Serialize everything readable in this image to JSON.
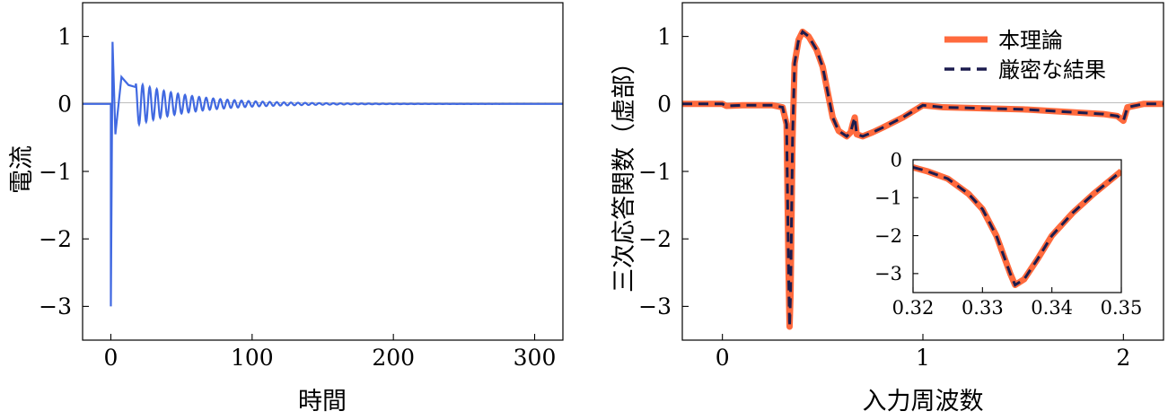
{
  "chart_data": [
    {
      "type": "line",
      "xlabel": "時間",
      "ylabel": "電流",
      "xlim": [
        -20,
        320
      ],
      "ylim": [
        -3.5,
        1.5
      ],
      "xticks": [
        0,
        100,
        200,
        300
      ],
      "yticks": [
        1,
        0,
        -1,
        -2,
        -3
      ],
      "xtick_labels": [
        "0",
        "100",
        "200",
        "300"
      ],
      "ytick_labels": [
        "1",
        "0",
        "−1",
        "−2",
        "−3"
      ],
      "series": [
        {
          "color": "#4169e1",
          "model": "damped oscillation",
          "x_start": 0,
          "x_end": 320,
          "peaks": [
            [
              0.0,
              -3.0
            ],
            [
              1.2,
              0.92
            ],
            [
              3.2,
              -0.45
            ],
            [
              7.5,
              0.4
            ],
            [
              12.5,
              0.28
            ],
            [
              17.5,
              0.25
            ]
          ],
          "period": 5.0,
          "decay": 40,
          "tail_amplitude": 0.32
        }
      ]
    },
    {
      "type": "line",
      "xlabel": "入力周波数",
      "ylabel": "三次応答関数（虚部）",
      "xlim": [
        -0.2,
        2.2
      ],
      "ylim": [
        -3.5,
        1.5
      ],
      "xticks": [
        0,
        1,
        2
      ],
      "yticks": [
        1,
        0,
        -1,
        -2,
        -3
      ],
      "xtick_labels": [
        "0",
        "1",
        "2"
      ],
      "ytick_labels": [
        "1",
        "0",
        "−1",
        "−2",
        "−3"
      ],
      "legend": {
        "position": "top-right",
        "entries": [
          "本理論",
          "厳密な結果"
        ]
      },
      "series": [
        {
          "name": "本理論",
          "color": "#ff6a3d",
          "style": "solid",
          "points": [
            [
              -0.2,
              0.0
            ],
            [
              0.0,
              0.0
            ],
            [
              0.02,
              -0.03
            ],
            [
              0.1,
              -0.02
            ],
            [
              0.25,
              -0.02
            ],
            [
              0.3,
              -0.05
            ],
            [
              0.32,
              -0.3
            ],
            [
              0.33,
              -2.5
            ],
            [
              0.335,
              -3.3
            ],
            [
              0.34,
              -2.8
            ],
            [
              0.35,
              -0.5
            ],
            [
              0.36,
              0.6
            ],
            [
              0.38,
              0.95
            ],
            [
              0.4,
              1.07
            ],
            [
              0.43,
              1.0
            ],
            [
              0.47,
              0.8
            ],
            [
              0.5,
              0.55
            ],
            [
              0.53,
              0.1
            ],
            [
              0.55,
              -0.2
            ],
            [
              0.58,
              -0.4
            ],
            [
              0.62,
              -0.48
            ],
            [
              0.64,
              -0.42
            ],
            [
              0.65,
              -0.3
            ],
            [
              0.66,
              -0.2
            ],
            [
              0.67,
              -0.45
            ],
            [
              0.7,
              -0.48
            ],
            [
              0.75,
              -0.42
            ],
            [
              0.8,
              -0.35
            ],
            [
              0.9,
              -0.2
            ],
            [
              1.0,
              -0.02
            ],
            [
              1.1,
              -0.05
            ],
            [
              1.5,
              -0.08
            ],
            [
              1.9,
              -0.15
            ],
            [
              1.97,
              -0.18
            ],
            [
              2.0,
              -0.25
            ],
            [
              2.02,
              -0.05
            ],
            [
              2.1,
              0.0
            ],
            [
              2.2,
              0.0
            ]
          ]
        },
        {
          "name": "厳密な結果",
          "color": "#1c1c4e",
          "style": "dashed",
          "points": [
            [
              -0.2,
              0.0
            ],
            [
              0.0,
              0.0
            ],
            [
              0.02,
              -0.03
            ],
            [
              0.1,
              -0.02
            ],
            [
              0.25,
              -0.02
            ],
            [
              0.3,
              -0.05
            ],
            [
              0.32,
              -0.3
            ],
            [
              0.33,
              -2.5
            ],
            [
              0.335,
              -3.3
            ],
            [
              0.34,
              -2.8
            ],
            [
              0.35,
              -0.5
            ],
            [
              0.36,
              0.6
            ],
            [
              0.38,
              0.95
            ],
            [
              0.4,
              1.07
            ],
            [
              0.43,
              1.0
            ],
            [
              0.47,
              0.8
            ],
            [
              0.5,
              0.55
            ],
            [
              0.53,
              0.1
            ],
            [
              0.55,
              -0.2
            ],
            [
              0.58,
              -0.4
            ],
            [
              0.62,
              -0.48
            ],
            [
              0.64,
              -0.42
            ],
            [
              0.65,
              -0.3
            ],
            [
              0.66,
              -0.2
            ],
            [
              0.67,
              -0.45
            ],
            [
              0.7,
              -0.48
            ],
            [
              0.75,
              -0.42
            ],
            [
              0.8,
              -0.35
            ],
            [
              0.9,
              -0.2
            ],
            [
              1.0,
              -0.02
            ],
            [
              1.1,
              -0.05
            ],
            [
              1.5,
              -0.08
            ],
            [
              1.9,
              -0.15
            ],
            [
              1.97,
              -0.18
            ],
            [
              2.0,
              -0.25
            ],
            [
              2.02,
              -0.05
            ],
            [
              2.1,
              0.0
            ],
            [
              2.2,
              0.0
            ]
          ]
        }
      ]
    },
    {
      "type": "line",
      "inset_of": 1,
      "xlim": [
        0.32,
        0.35
      ],
      "ylim": [
        -3.5,
        0.0
      ],
      "xticks": [
        0.32,
        0.33,
        0.34,
        0.35
      ],
      "yticks": [
        0,
        -1,
        -2,
        -3
      ],
      "xtick_labels": [
        "0.32",
        "0.33",
        "0.34",
        "0.35"
      ],
      "ytick_labels": [
        "0",
        "−1",
        "−2",
        "−3"
      ],
      "series": [
        {
          "name": "本理論",
          "color": "#ff6a3d",
          "style": "solid",
          "points": [
            [
              0.32,
              -0.2
            ],
            [
              0.322,
              -0.3
            ],
            [
              0.325,
              -0.5
            ],
            [
              0.328,
              -0.9
            ],
            [
              0.33,
              -1.3
            ],
            [
              0.332,
              -2.0
            ],
            [
              0.334,
              -3.0
            ],
            [
              0.3347,
              -3.3
            ],
            [
              0.336,
              -3.15
            ],
            [
              0.338,
              -2.6
            ],
            [
              0.34,
              -2.0
            ],
            [
              0.343,
              -1.4
            ],
            [
              0.346,
              -0.9
            ],
            [
              0.35,
              -0.3
            ]
          ]
        },
        {
          "name": "厳密な結果",
          "color": "#1c1c4e",
          "style": "dashed",
          "points": [
            [
              0.32,
              -0.2
            ],
            [
              0.322,
              -0.3
            ],
            [
              0.325,
              -0.5
            ],
            [
              0.328,
              -0.9
            ],
            [
              0.33,
              -1.3
            ],
            [
              0.332,
              -2.0
            ],
            [
              0.334,
              -3.0
            ],
            [
              0.3347,
              -3.3
            ],
            [
              0.336,
              -3.15
            ],
            [
              0.338,
              -2.6
            ],
            [
              0.34,
              -2.0
            ],
            [
              0.343,
              -1.4
            ],
            [
              0.346,
              -0.9
            ],
            [
              0.35,
              -0.3
            ]
          ]
        }
      ]
    }
  ]
}
